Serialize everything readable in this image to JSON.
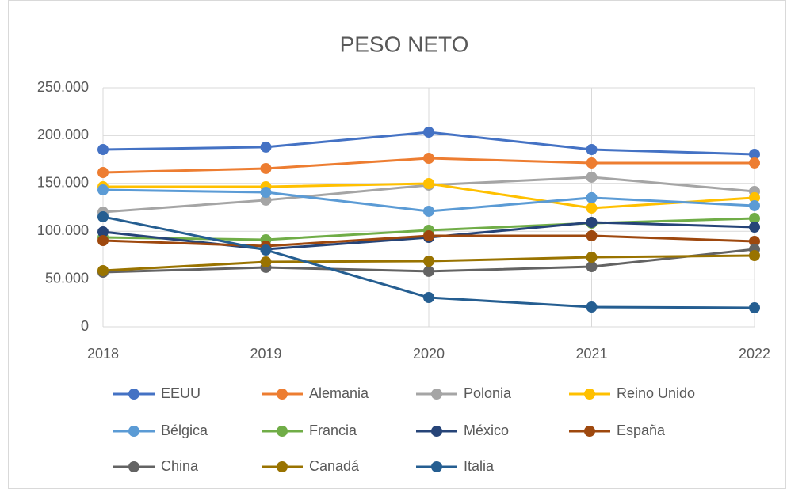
{
  "chart_data": {
    "type": "line",
    "title": "PESO NETO",
    "categories": [
      "2018",
      "2019",
      "2020",
      "2021",
      "2022"
    ],
    "series": [
      {
        "name": "EEUU",
        "color": "#4472C4",
        "values": [
          185400,
          188000,
          203600,
          185400,
          180500
        ]
      },
      {
        "name": "Alemania",
        "color": "#ED7D31",
        "values": [
          161400,
          165600,
          176300,
          171400,
          171400
        ]
      },
      {
        "name": "Polonia",
        "color": "#A5A5A5",
        "values": [
          120000,
          132500,
          148200,
          156500,
          141600
        ]
      },
      {
        "name": "Reino Unido",
        "color": "#FFC000",
        "values": [
          146500,
          146500,
          149800,
          124200,
          135000
        ]
      },
      {
        "name": "Bélgica",
        "color": "#5B9BD5",
        "values": [
          143200,
          140700,
          120900,
          135000,
          126700
        ]
      },
      {
        "name": "Francia",
        "color": "#70AD47",
        "values": [
          93500,
          91100,
          101000,
          108400,
          113400
        ]
      },
      {
        "name": "México",
        "color": "#264478",
        "values": [
          99300,
          81100,
          93500,
          109300,
          104300
        ]
      },
      {
        "name": "España",
        "color": "#9E480E",
        "values": [
          90200,
          84400,
          95200,
          95200,
          89400
        ]
      },
      {
        "name": "China",
        "color": "#636363",
        "values": [
          57100,
          62100,
          58000,
          62900,
          81100
        ]
      },
      {
        "name": "Canadá",
        "color": "#997300",
        "values": [
          58800,
          67900,
          68700,
          72800,
          74500
        ]
      },
      {
        "name": "Italia",
        "color": "#255E91",
        "values": [
          115100,
          80300,
          30600,
          20700,
          19900
        ]
      }
    ],
    "ylim": [
      0,
      250000
    ],
    "yticks": [
      0,
      {
        "value": 50000,
        "label": "50.000"
      },
      {
        "value": 100000,
        "label": "100.000"
      },
      {
        "value": 150000,
        "label": "150.000"
      },
      {
        "value": 200000,
        "label": "200.000"
      },
      {
        "value": 250000,
        "label": "250.000"
      }
    ],
    "grid": true
  }
}
